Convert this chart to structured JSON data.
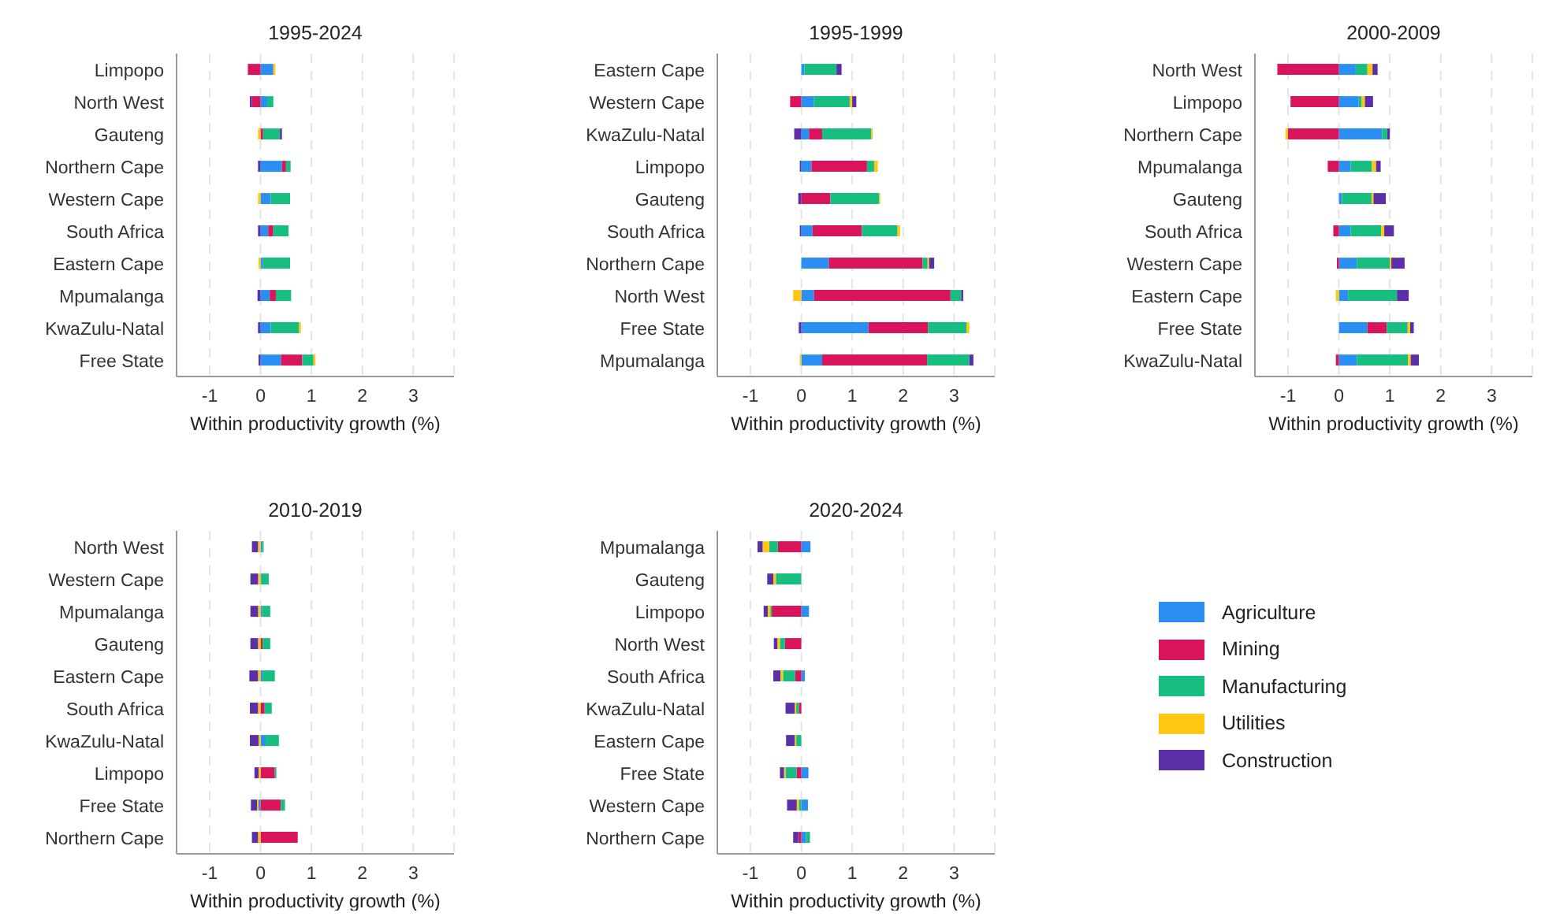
{
  "chart_data": [
    {
      "type": "bar",
      "orientation": "horizontal",
      "stacked": true,
      "title": "1995-2024",
      "xlabel": "Within productivity growth (%)",
      "xlim": [
        -1.65,
        3.8
      ],
      "xticks": [
        -1,
        0,
        1,
        2,
        3
      ],
      "grid": "x",
      "legend": "bottom right",
      "categories": [
        "Limpopo",
        "North West",
        "Gauteng",
        "Northern Cape",
        "Western Cape",
        "South Africa",
        "Eastern Cape",
        "Mpumalanga",
        "KwaZulu-Natal",
        "Free State"
      ],
      "series": [
        {
          "name": "Agriculture",
          "color": "#2b8ef2",
          "values": [
            0.25,
            0.13,
            null,
            0.42,
            0.2,
            0.15,
            0.05,
            0.18,
            0.2,
            0.4
          ]
        },
        {
          "name": "Mining",
          "color": "#d8145c",
          "values": [
            -0.25,
            -0.17,
            0.05,
            0.08,
            null,
            0.1,
            null,
            0.12,
            null,
            0.42
          ]
        },
        {
          "name": "Manufacturing",
          "color": "#16bf80",
          "values": [
            null,
            0.12,
            0.33,
            0.09,
            0.38,
            0.3,
            0.53,
            0.3,
            0.55,
            0.22
          ]
        },
        {
          "name": "Utilities",
          "color": "#ffc713",
          "values": [
            0.04,
            null,
            -0.05,
            null,
            -0.05,
            null,
            -0.04,
            null,
            0.04,
            0.04
          ]
        },
        {
          "name": "Construction",
          "color": "#5b2fa8",
          "values": [
            null,
            -0.04,
            0.04,
            -0.05,
            null,
            -0.05,
            null,
            -0.06,
            -0.05,
            -0.04
          ]
        }
      ]
    },
    {
      "type": "bar",
      "orientation": "horizontal",
      "stacked": true,
      "title": "1995-1999",
      "xlabel": "Within productivity growth (%)",
      "xlim": [
        -1.65,
        3.8
      ],
      "xticks": [
        -1,
        0,
        1,
        2,
        3
      ],
      "grid": "x",
      "categories": [
        "Eastern Cape",
        "Western Cape",
        "KwaZulu-Natal",
        "Limpopo",
        "Gauteng",
        "South Africa",
        "Northern Cape",
        "North West",
        "Free State",
        "Mpumalanga"
      ],
      "series": [
        {
          "color": "#2b8ef2",
          "values": [
            0.06,
            0.25,
            0.15,
            0.2,
            null,
            0.22,
            0.54,
            0.25,
            1.32,
            0.41
          ]
        },
        {
          "color": "#d8145c",
          "values": [
            null,
            -0.22,
            0.26,
            1.09,
            0.57,
            0.97,
            1.84,
            2.68,
            1.17,
            2.06
          ]
        },
        {
          "color": "#16bf80",
          "values": [
            0.63,
            0.7,
            0.96,
            0.14,
            0.96,
            0.7,
            0.1,
            0.21,
            0.76,
            0.83
          ]
        },
        {
          "color": "#ffc713",
          "values": [
            null,
            0.05,
            0.03,
            0.07,
            0.02,
            0.05,
            0.03,
            -0.16,
            0.05,
            -0.03
          ]
        },
        {
          "color": "#5b2fa8",
          "values": [
            0.1,
            0.08,
            -0.14,
            -0.03,
            -0.06,
            -0.03,
            0.1,
            0.04,
            -0.05,
            0.08
          ]
        }
      ]
    },
    {
      "type": "bar",
      "orientation": "horizontal",
      "stacked": true,
      "title": "2000-2009",
      "xlabel": "Within productivity growth (%)",
      "xlim": [
        -1.65,
        3.8
      ],
      "xticks": [
        -1,
        0,
        1,
        2,
        3
      ],
      "grid": "x",
      "categories": [
        "North West",
        "Limpopo",
        "Northern Cape",
        "Mpumalanga",
        "Gauteng",
        "South Africa",
        "Western Cape",
        "Eastern Cape",
        "Free State",
        "KwaZulu-Natal"
      ],
      "series": [
        {
          "color": "#2b8ef2",
          "values": [
            0.33,
            0.39,
            0.85,
            0.23,
            0.06,
            0.23,
            0.35,
            0.18,
            0.56,
            0.35
          ]
        },
        {
          "color": "#d8145c",
          "values": [
            -1.21,
            -0.95,
            -1.0,
            -0.22,
            null,
            -0.11,
            -0.04,
            null,
            0.38,
            -0.06
          ]
        },
        {
          "color": "#16bf80",
          "values": [
            0.23,
            0.05,
            0.1,
            0.42,
            0.58,
            0.6,
            0.65,
            0.96,
            0.41,
            1.01
          ]
        },
        {
          "color": "#ffc713",
          "values": [
            0.1,
            0.07,
            -0.05,
            0.08,
            0.04,
            0.06,
            0.03,
            -0.06,
            0.05,
            0.05
          ]
        },
        {
          "color": "#5b2fa8",
          "values": [
            0.1,
            0.16,
            0.05,
            0.09,
            0.24,
            0.19,
            0.26,
            0.23,
            0.07,
            0.16
          ]
        }
      ]
    },
    {
      "type": "bar",
      "orientation": "horizontal",
      "stacked": true,
      "title": "2010-2019",
      "xlabel": "Within productivity growth (%)",
      "xlim": [
        -1.65,
        3.8
      ],
      "xticks": [
        -1,
        0,
        1,
        2,
        3
      ],
      "grid": "x",
      "categories": [
        "North West",
        "Western Cape",
        "Mpumalanga",
        "Gauteng",
        "Eastern Cape",
        "South Africa",
        "KwaZulu-Natal",
        "Limpopo",
        "Free State",
        "Northern Cape"
      ],
      "series": [
        {
          "color": "#2b8ef2",
          "values": [
            0.03,
            0.02,
            0.03,
            null,
            0.04,
            null,
            0.1,
            null,
            -0.04,
            null
          ]
        },
        {
          "color": "#d8145c",
          "values": [
            null,
            null,
            null,
            0.04,
            null,
            0.08,
            null,
            0.28,
            0.4,
            0.73
          ]
        },
        {
          "color": "#16bf80",
          "values": [
            0.03,
            0.14,
            0.16,
            0.15,
            0.24,
            0.14,
            0.26,
            0.03,
            0.08,
            null
          ]
        },
        {
          "color": "#ffc713",
          "values": [
            -0.05,
            -0.05,
            -0.05,
            -0.05,
            -0.05,
            -0.05,
            -0.04,
            -0.04,
            -0.03,
            -0.05
          ]
        },
        {
          "color": "#5b2fa8",
          "values": [
            -0.12,
            -0.15,
            -0.15,
            -0.15,
            -0.17,
            -0.16,
            -0.17,
            -0.08,
            -0.12,
            -0.12
          ]
        }
      ]
    },
    {
      "type": "bar",
      "orientation": "horizontal",
      "stacked": true,
      "title": "2020-2024",
      "xlabel": "Within productivity growth (%)",
      "xlim": [
        -1.65,
        3.8
      ],
      "xticks": [
        -1,
        0,
        1,
        2,
        3
      ],
      "grid": "x",
      "categories": [
        "Mpumalanga",
        "Gauteng",
        "Limpopo",
        "North West",
        "South Africa",
        "KwaZulu-Natal",
        "Eastern Cape",
        "Free State",
        "Western Cape",
        "Northern Cape"
      ],
      "series": [
        {
          "color": "#2b8ef2",
          "values": [
            0.18,
            null,
            0.15,
            null,
            0.07,
            null,
            null,
            0.14,
            0.13,
            0.09
          ]
        },
        {
          "color": "#d8145c",
          "values": [
            -0.46,
            null,
            -0.58,
            -0.32,
            -0.12,
            -0.05,
            null,
            -0.09,
            null,
            -0.06
          ]
        },
        {
          "color": "#16bf80",
          "values": [
            -0.17,
            -0.5,
            -0.03,
            -0.1,
            -0.24,
            -0.05,
            -0.1,
            -0.22,
            -0.05,
            0.08
          ]
        },
        {
          "color": "#ffc713",
          "values": [
            -0.13,
            -0.05,
            -0.05,
            -0.05,
            -0.05,
            -0.03,
            -0.03,
            -0.03,
            -0.04,
            null
          ]
        },
        {
          "color": "#5b2fa8",
          "values": [
            -0.1,
            -0.12,
            -0.08,
            -0.07,
            -0.14,
            -0.18,
            -0.17,
            -0.08,
            -0.19,
            -0.1
          ]
        }
      ]
    }
  ]
}
